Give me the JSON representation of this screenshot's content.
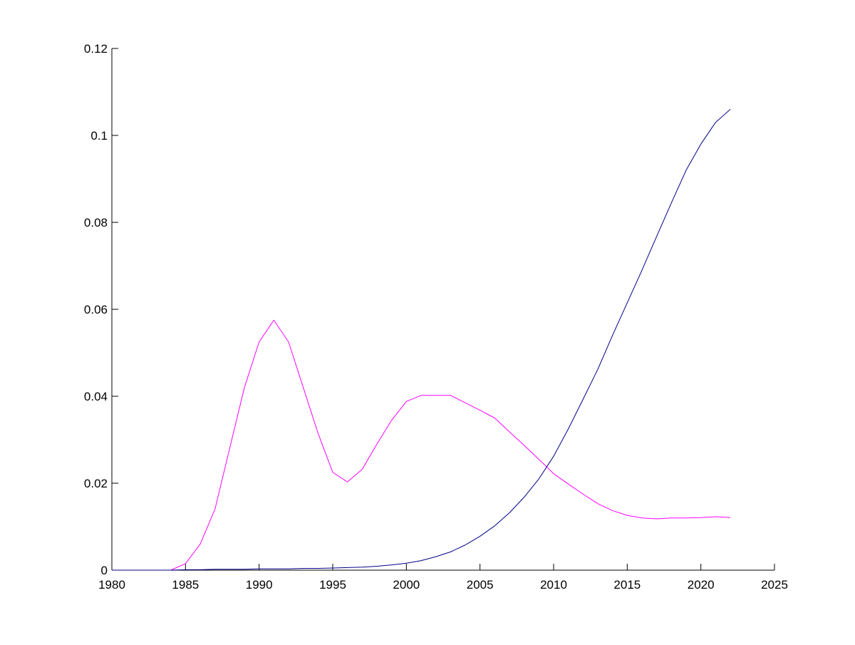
{
  "chart_data": {
    "type": "line",
    "title": "",
    "xlabel": "",
    "ylabel": "",
    "xlim": [
      1980,
      2025
    ],
    "ylim": [
      0,
      0.12
    ],
    "grid": false,
    "legend": "none",
    "xticks": [
      1980,
      1985,
      1990,
      1995,
      2000,
      2005,
      2010,
      2015,
      2020,
      2025
    ],
    "xtick_labels": [
      "1980",
      "1985",
      "1990",
      "1995",
      "2000",
      "2005",
      "2010",
      "2015",
      "2020",
      "2025"
    ],
    "yticks": [
      0,
      0.02,
      0.04,
      0.06,
      0.08,
      0.1,
      0.12
    ],
    "ytick_labels": [
      "0",
      "0.02",
      "0.04",
      "0.06",
      "0.08",
      "0.1",
      "0.12"
    ],
    "series": [
      {
        "color": "#ff00ff",
        "x": [
          1980,
          1981,
          1982,
          1983,
          1984,
          1985,
          1986,
          1987,
          1988,
          1989,
          1990,
          1991,
          1992,
          1993,
          1994,
          1995,
          1996,
          1997,
          1998,
          1999,
          2000,
          2001,
          2002,
          2003,
          2004,
          2005,
          2006,
          2007,
          2008,
          2009,
          2010,
          2011,
          2012,
          2013,
          2014,
          2015,
          2016,
          2017,
          2018,
          2019,
          2020,
          2021,
          2022
        ],
        "y": [
          0,
          0,
          0,
          0,
          0,
          0.0015,
          0.006,
          0.014,
          0.028,
          0.042,
          0.0525,
          0.0575,
          0.0525,
          0.042,
          0.0315,
          0.0225,
          0.0203,
          0.0232,
          0.029,
          0.0345,
          0.0388,
          0.0402,
          0.0402,
          0.0402,
          0.0385,
          0.0368,
          0.035,
          0.0318,
          0.0287,
          0.0255,
          0.0222,
          0.0198,
          0.0175,
          0.0153,
          0.0137,
          0.0126,
          0.012,
          0.0118,
          0.012,
          0.012,
          0.0121,
          0.0123,
          0.0121
        ]
      },
      {
        "color": "#00008b",
        "x": [
          1980,
          1981,
          1982,
          1983,
          1984,
          1985,
          1986,
          1987,
          1988,
          1989,
          1990,
          1991,
          1992,
          1993,
          1994,
          1995,
          1996,
          1997,
          1998,
          1999,
          2000,
          2001,
          2002,
          2003,
          2004,
          2005,
          2006,
          2007,
          2008,
          2009,
          2010,
          2011,
          2012,
          2013,
          2014,
          2015,
          2016,
          2017,
          2018,
          2019,
          2020,
          2021,
          2022
        ],
        "y": [
          0,
          0,
          0,
          0,
          0,
          0.0001,
          0.0001,
          0.0002,
          0.0002,
          0.0002,
          0.0003,
          0.0003,
          0.0003,
          0.0004,
          0.0004,
          0.0005,
          0.0006,
          0.0007,
          0.0009,
          0.0012,
          0.0016,
          0.0022,
          0.0031,
          0.0042,
          0.0058,
          0.0078,
          0.0102,
          0.0132,
          0.0168,
          0.021,
          0.0262,
          0.0325,
          0.0393,
          0.0462,
          0.054,
          0.0615,
          0.069,
          0.0768,
          0.0845,
          0.092,
          0.098,
          0.103,
          0.106
        ]
      }
    ]
  }
}
